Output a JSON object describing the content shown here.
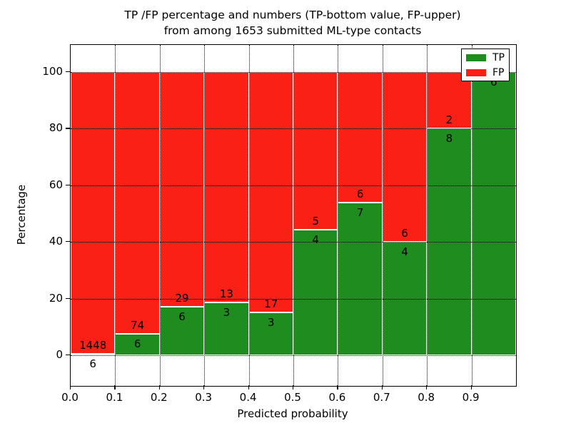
{
  "title": {
    "line1": "TP /FP percentage and numbers (TP-bottom value, FP-upper)",
    "line2": "from among 1653 submitted ML-type contacts"
  },
  "axes": {
    "xlabel": "Predicted probability",
    "ylabel": "Percentage",
    "x_ticks": [
      "0.0",
      "0.1",
      "0.2",
      "0.3",
      "0.4",
      "0.5",
      "0.6",
      "0.7",
      "0.8",
      "0.9"
    ],
    "y_ticks": [
      "0",
      "20",
      "40",
      "60",
      "80",
      "100"
    ]
  },
  "legend": {
    "items": [
      {
        "label": "TP",
        "color": "#1e8c1e"
      },
      {
        "label": "FP",
        "color": "#fb2015"
      }
    ]
  },
  "colors": {
    "tp_green": "#1e8c1e",
    "fp_red": "#fb2015",
    "bar_edge": "#ffffff",
    "grid": "#000000",
    "text": "#000000",
    "background": "#ffffff"
  },
  "chart_data": {
    "type": "bar",
    "stacked": true,
    "units": "percent",
    "title": "TP /FP percentage and numbers (TP-bottom value, FP-upper) from among 1653 submitted ML-type contacts",
    "xlabel": "Predicted probability",
    "ylabel": "Percentage",
    "total_contacts": 1653,
    "bin_width": 0.1,
    "categories": [
      "0.0-0.1",
      "0.1-0.2",
      "0.2-0.3",
      "0.3-0.4",
      "0.4-0.5",
      "0.5-0.6",
      "0.6-0.7",
      "0.7-0.8",
      "0.8-0.9",
      "0.9-1.0"
    ],
    "series": [
      {
        "name": "TP",
        "counts": [
          6,
          6,
          6,
          3,
          3,
          4,
          7,
          4,
          8,
          6
        ],
        "pct": [
          0.41,
          7.5,
          17.14,
          18.75,
          15.0,
          44.44,
          53.85,
          40.0,
          80.0,
          100.0
        ]
      },
      {
        "name": "FP",
        "counts": [
          1448,
          74,
          29,
          13,
          17,
          5,
          6,
          6,
          2,
          0
        ],
        "pct": [
          99.59,
          92.5,
          82.86,
          81.25,
          85.0,
          55.56,
          46.15,
          60.0,
          20.0,
          0.0
        ]
      }
    ],
    "bar_labels": {
      "tp": [
        "6",
        "6",
        "6",
        "3",
        "3",
        "4",
        "7",
        "4",
        "8",
        "6"
      ],
      "fp": [
        "1448",
        "74",
        "29",
        "13",
        "17",
        "5",
        "6",
        "6",
        "2",
        ""
      ]
    },
    "xlim": [
      0.0,
      1.0
    ],
    "ylim": [
      -10.8,
      109.6
    ],
    "y_tick_values": [
      0,
      20,
      40,
      60,
      80,
      100
    ],
    "grid": "dotted",
    "legend_position": "upper right"
  }
}
